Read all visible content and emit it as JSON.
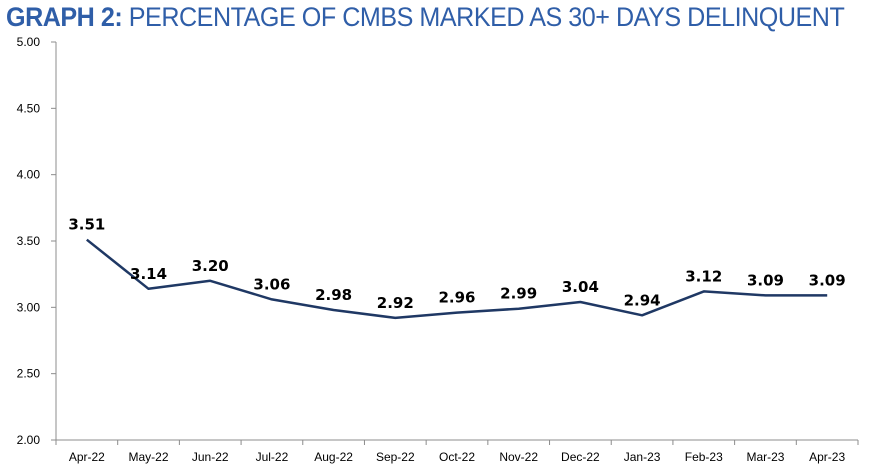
{
  "chart_data": {
    "type": "line",
    "title_bold": "GRAPH 2:",
    "title_rest": " PERCENTAGE OF CMBS MARKED AS 30+ DAYS DELINQUENT",
    "categories": [
      "Apr-22",
      "May-22",
      "Jun-22",
      "Jul-22",
      "Aug-22",
      "Sep-22",
      "Oct-22",
      "Nov-22",
      "Dec-22",
      "Jan-23",
      "Feb-23",
      "Mar-23",
      "Apr-23"
    ],
    "values": [
      3.51,
      3.14,
      3.2,
      3.06,
      2.98,
      2.92,
      2.96,
      2.99,
      3.04,
      2.94,
      3.12,
      3.09,
      3.09
    ],
    "data_labels": [
      "3.51",
      "3.14",
      "3.20",
      "3.06",
      "2.98",
      "2.92",
      "2.96",
      "2.99",
      "3.04",
      "2.94",
      "3.12",
      "3.09",
      "3.09"
    ],
    "yticks": [
      "2.00",
      "2.50",
      "3.00",
      "3.50",
      "4.00",
      "4.50",
      "5.00"
    ],
    "ylim": [
      2.0,
      5.0
    ],
    "grid": false,
    "line_color": "#1f3864",
    "title_color": "#2f5ea8"
  }
}
